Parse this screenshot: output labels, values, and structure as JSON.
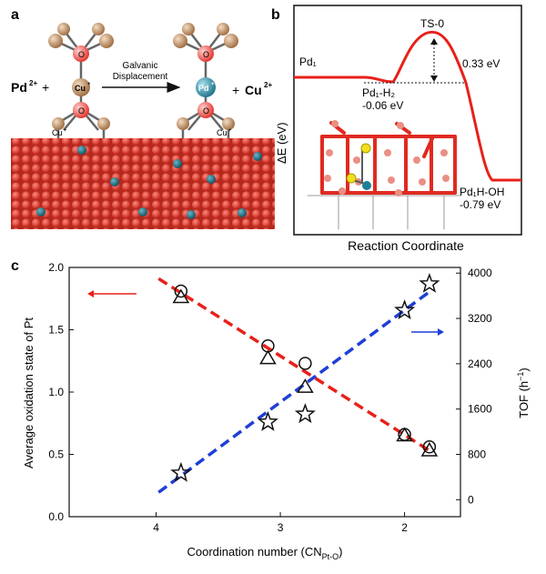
{
  "panel_a": {
    "label": "a",
    "pd_ion": "Pd",
    "pd_ion_charge": "2+",
    "plus": "+",
    "arrow_text_line1": "Galvanic",
    "arrow_text_line2": "Displacement",
    "cu_ion": "Cu",
    "cu_ion_charge": "2+",
    "atom_o": "O",
    "atom_cu_center": "Cu",
    "atom_cu_center_sup": "+",
    "atom_pd_center": "Pd",
    "atom_pd_center_sup": "+",
    "atom_cu_base": "Cu",
    "atom_cu_base_sup": "+",
    "colors": {
      "cu_atom": "#b98a5c",
      "o_atom": "#e9302a",
      "pd_atom": "#2a7f94",
      "surface": "#d63b2f"
    }
  },
  "panel_b": {
    "label": "b",
    "ts_label": "TS-0",
    "barrier_label": "0.33 eV",
    "start_label": "Pd₁",
    "h2_label": "Pd₁-H₂",
    "h2_value": "-0.06 eV",
    "final_label": "Pd₁H-OH",
    "final_value": "-0.79 eV",
    "ylabel": "ΔE (eV)",
    "xlabel": "Reaction Coordinate",
    "colors": {
      "profile": "#e8201a"
    }
  },
  "panel_c": {
    "label": "c"
  },
  "chart_data": {
    "type": "scatter",
    "xlabel": "Coordination number (CN",
    "xlabel_sub": "Pt-O",
    "xlabel_end": ")",
    "xlim": [
      4.7,
      1.55
    ],
    "xticks": [
      "4",
      "3",
      "2"
    ],
    "xtick_values": [
      4,
      3,
      2
    ],
    "ylabel_left": "Average oxidation state of Pt",
    "ylim_left": [
      0.0,
      2.0
    ],
    "yticks_left": [
      "0.0",
      "0.5",
      "1.0",
      "1.5",
      "2.0"
    ],
    "ytick_left_values": [
      0.0,
      0.5,
      1.0,
      1.5,
      2.0
    ],
    "ylabel_right": "TOF (h",
    "ylabel_right_sup": "−1",
    "ylabel_right_end": ")",
    "ylim_right": [
      -300,
      4100
    ],
    "yticks_right": [
      "0",
      "800",
      "1600",
      "2400",
      "3200",
      "4000"
    ],
    "ytick_right_values": [
      0,
      800,
      1600,
      2400,
      3200,
      4000
    ],
    "series": [
      {
        "marker": "circle",
        "axis": "left",
        "x": [
          3.8,
          3.1,
          2.8,
          2.0,
          1.8
        ],
        "y": [
          1.81,
          1.37,
          1.23,
          0.66,
          0.56
        ]
      },
      {
        "marker": "triangle",
        "axis": "left",
        "x": [
          3.8,
          3.1,
          2.8,
          2.0,
          1.8
        ],
        "y": [
          1.76,
          1.27,
          1.04,
          0.65,
          0.53
        ]
      },
      {
        "marker": "star",
        "axis": "right",
        "x": [
          3.8,
          3.1,
          2.8,
          2.0,
          1.8
        ],
        "y": [
          470,
          1370,
          1510,
          3340,
          3810
        ]
      }
    ],
    "trendlines": [
      {
        "axis": "left",
        "color": "#e8201a",
        "x": [
          3.98,
          1.8
        ],
        "y": [
          1.91,
          0.53
        ]
      },
      {
        "axis": "right",
        "color": "#1f3fd6",
        "x": [
          3.98,
          1.8
        ],
        "y": [
          130,
          3670
        ]
      }
    ],
    "colors": {
      "left_arrow": "#e8201a",
      "right_arrow": "#1f3fd6"
    },
    "grid": false
  }
}
